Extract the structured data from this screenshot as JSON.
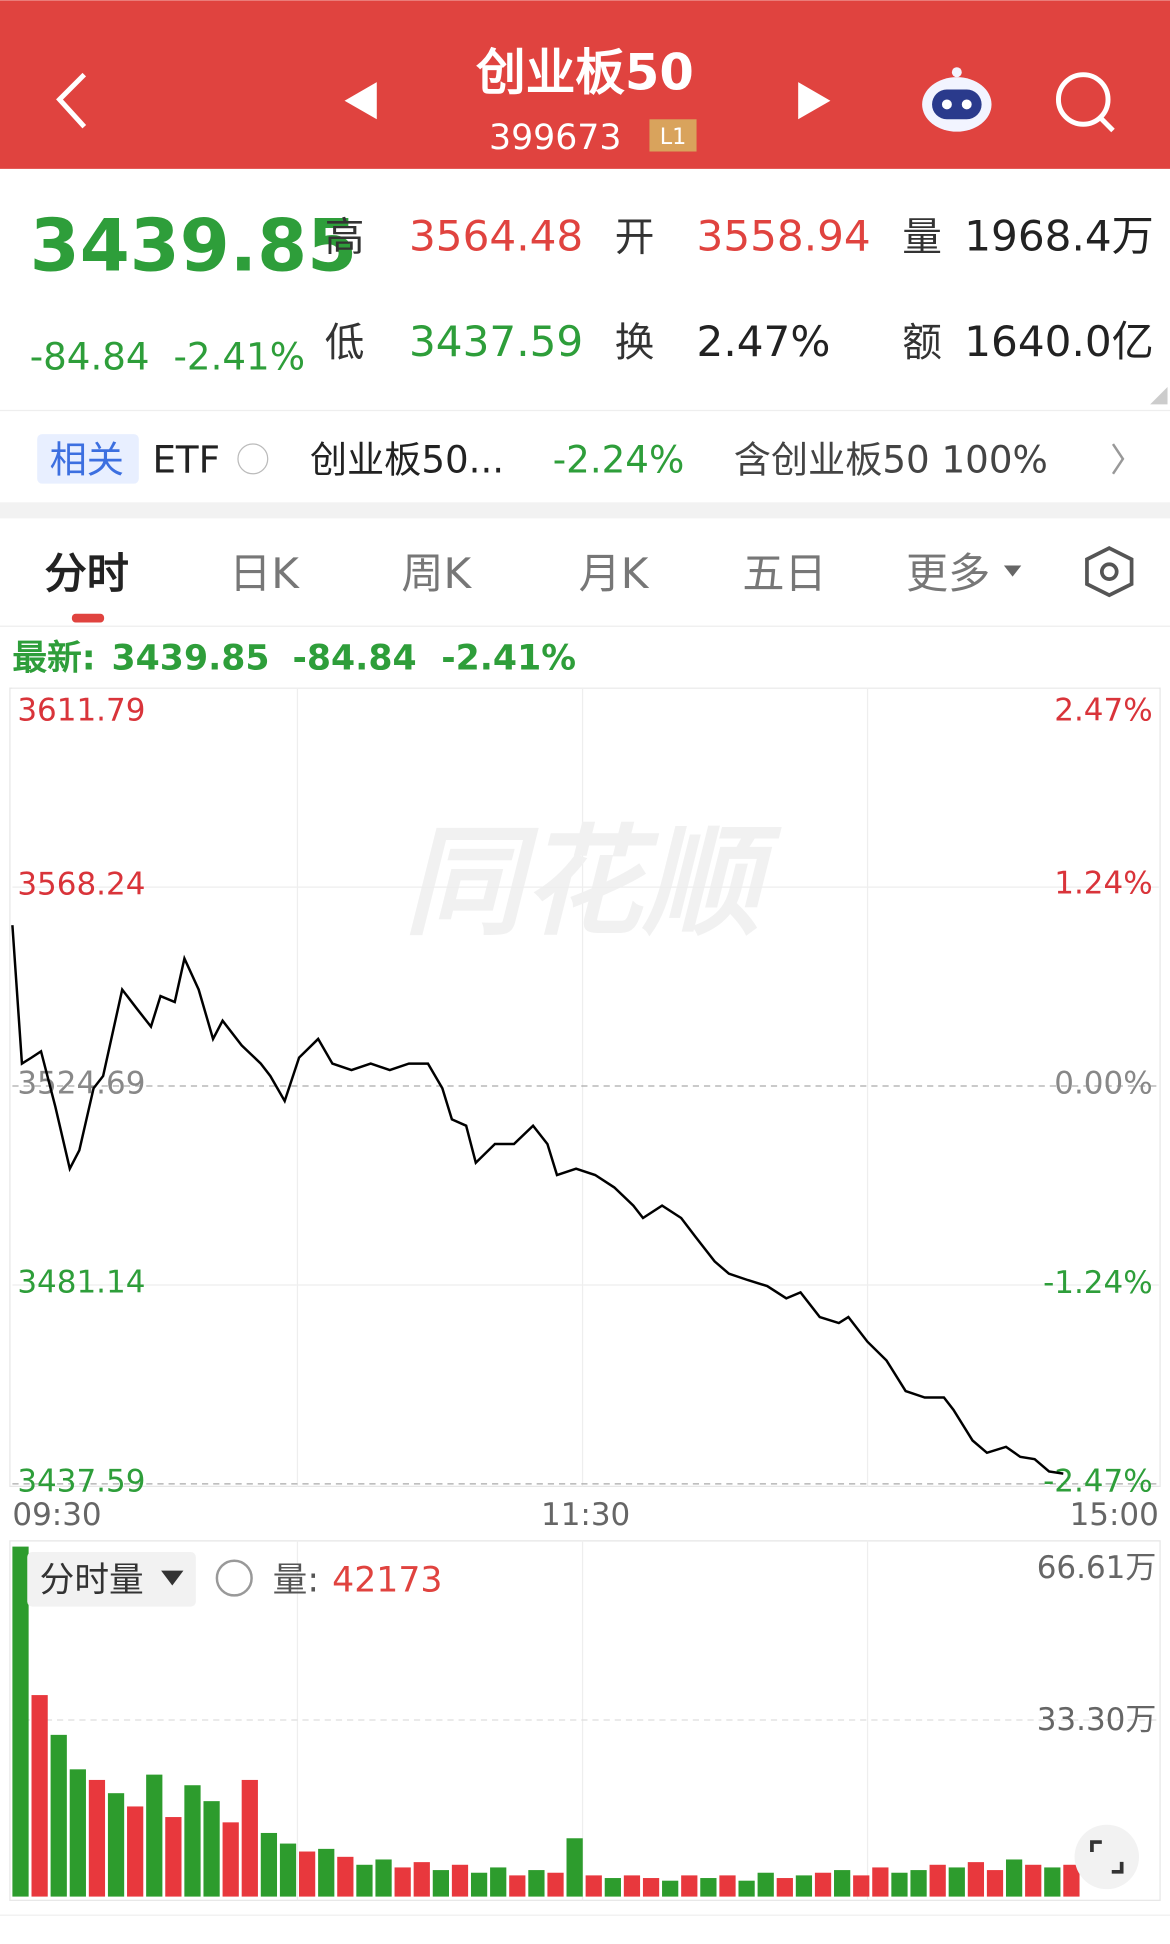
{
  "header": {
    "title": "创业板50",
    "code": "399673",
    "badge": "L1"
  },
  "quote": {
    "price": "3439.85",
    "change": "-84.84",
    "change_pct": "-2.41%",
    "stats": [
      {
        "label": "高",
        "value": "3564.48"
      },
      {
        "label": "开",
        "value": "3558.94"
      },
      {
        "label": "量",
        "value": "1968.4万"
      },
      {
        "label": "低",
        "value": "3437.59"
      },
      {
        "label": "换",
        "value": "2.47%"
      },
      {
        "label": "额",
        "value": "1640.0亿"
      }
    ]
  },
  "related": {
    "tag": "相关",
    "etf": "ETF",
    "name": "创业板50...",
    "pct": "-2.24%",
    "holding": "含创业板50 100%"
  },
  "tabs": [
    "分时",
    "日K",
    "周K",
    "月K",
    "五日",
    "更多"
  ],
  "latest": {
    "label": "最新:",
    "price": "3439.85",
    "change": "-84.84",
    "pct": "-2.41%"
  },
  "watermark": "同花顺",
  "volume_panel": {
    "label": "分时量",
    "vol_label": "量:",
    "vol_value": "42173"
  },
  "chart_data": [
    {
      "type": "line",
      "color": "#000000",
      "x": [
        0,
        2,
        4,
        6,
        9,
        12,
        14,
        17,
        19,
        23,
        26,
        29,
        31,
        34,
        36,
        39,
        42,
        44,
        48,
        52,
        54,
        57,
        60,
        64,
        67,
        71,
        75,
        79,
        83,
        87,
        90,
        92,
        95,
        97,
        101,
        105,
        109,
        112,
        114,
        118,
        122,
        126,
        130,
        132,
        136,
        140,
        143,
        147,
        150,
        154,
        158,
        162,
        165,
        169,
        173,
        175,
        179,
        183,
        187,
        191,
        195,
        197,
        201,
        204,
        208,
        211,
        214,
        217,
        220
      ],
      "values": [
        3559.9,
        3529.6,
        3530.9,
        3532.3,
        3520.1,
        3506.6,
        3510.6,
        3524.2,
        3526.9,
        3545.8,
        3541.7,
        3537.7,
        3544.4,
        3543.1,
        3552.6,
        3545.8,
        3535.0,
        3539.0,
        3533.6,
        3529.6,
        3526.9,
        3521.4,
        3530.9,
        3535.0,
        3529.6,
        3528.2,
        3529.6,
        3528.2,
        3529.6,
        3529.6,
        3524.2,
        3517.4,
        3516.0,
        3507.9,
        3512.0,
        3512.0,
        3516.0,
        3512.0,
        3505.2,
        3506.6,
        3505.2,
        3502.5,
        3498.5,
        3495.8,
        3498.5,
        3495.8,
        3491.7,
        3486.3,
        3483.6,
        3482.2,
        3480.9,
        3478.2,
        3479.5,
        3474.1,
        3472.8,
        3474.1,
        3468.7,
        3464.6,
        3457.9,
        3456.5,
        3456.5,
        3453.8,
        3447.1,
        3444.4,
        3445.7,
        3443.5,
        3443.0,
        3440.3,
        3439.85
      ],
      "xlim": [
        0,
        240
      ],
      "xticks": [
        {
          "value": 0,
          "label": "09:30"
        },
        {
          "value": 120,
          "label": "11:30"
        },
        {
          "value": 240,
          "label": "15:00"
        }
      ],
      "ylim": [
        3437.59,
        3611.79
      ],
      "yticks": [
        3611.79,
        3568.24,
        3524.69,
        3481.14,
        3437.59
      ],
      "y2lim": [
        -2.47,
        2.47
      ],
      "y2ticks": [
        {
          "value": 2.47,
          "label": "2.47%"
        },
        {
          "value": 1.24,
          "label": "1.24%"
        },
        {
          "value": 0.0,
          "label": "0.00%"
        },
        {
          "value": -1.24,
          "label": "-1.24%"
        },
        {
          "value": -2.47,
          "label": "-2.47%"
        }
      ]
    },
    {
      "type": "bar",
      "x": [
        0,
        4,
        8,
        12,
        16,
        20,
        24,
        28,
        32,
        36,
        40,
        44,
        48,
        52,
        56,
        60,
        64,
        68,
        72,
        76,
        80,
        84,
        88,
        92,
        96,
        100,
        104,
        108,
        112,
        116,
        120,
        124,
        128,
        132,
        136,
        140,
        144,
        148,
        152,
        156,
        160,
        164,
        168,
        172,
        176,
        180,
        184,
        188,
        192,
        196,
        200,
        204,
        208,
        212,
        216,
        220
      ],
      "values": [
        66.0,
        38.0,
        30.5,
        24.0,
        22.0,
        19.5,
        17.0,
        23.0,
        15.0,
        21.0,
        18.0,
        14.0,
        22.0,
        12.0,
        10.0,
        8.5,
        9.0,
        7.5,
        6.0,
        7.0,
        5.5,
        6.5,
        5.0,
        6.0,
        4.5,
        5.5,
        4.0,
        5.0,
        4.5,
        11.0,
        4.0,
        3.5,
        4.0,
        3.5,
        3.0,
        4.0,
        3.5,
        4.0,
        3.0,
        4.5,
        3.5,
        4.0,
        4.5,
        5.0,
        4.0,
        5.5,
        4.5,
        5.0,
        6.0,
        5.5,
        6.5,
        5.0,
        7.0,
        6.0,
        5.5,
        6.0
      ],
      "colors": [
        "#2d9c2d",
        "#e8383d",
        "#2d9c2d",
        "#2d9c2d",
        "#e8383d",
        "#2d9c2d",
        "#e8383d",
        "#2d9c2d",
        "#e8383d",
        "#2d9c2d",
        "#2d9c2d",
        "#e8383d",
        "#e8383d",
        "#2d9c2d",
        "#2d9c2d",
        "#e8383d",
        "#2d9c2d",
        "#e8383d",
        "#2d9c2d",
        "#2d9c2d",
        "#e8383d",
        "#e8383d",
        "#2d9c2d",
        "#e8383d",
        "#2d9c2d",
        "#2d9c2d",
        "#e8383d",
        "#2d9c2d",
        "#e8383d",
        "#2d9c2d",
        "#e8383d",
        "#2d9c2d",
        "#e8383d",
        "#e8383d",
        "#2d9c2d",
        "#e8383d",
        "#2d9c2d",
        "#e8383d",
        "#2d9c2d",
        "#2d9c2d",
        "#e8383d",
        "#2d9c2d",
        "#e8383d",
        "#2d9c2d",
        "#e8383d",
        "#e8383d",
        "#2d9c2d",
        "#2d9c2d",
        "#e8383d",
        "#2d9c2d",
        "#e8383d",
        "#e8383d",
        "#2d9c2d",
        "#e8383d",
        "#2d9c2d",
        "#e8383d"
      ],
      "xlim": [
        0,
        240
      ],
      "ylim": [
        0,
        66.61
      ],
      "yticks": [
        {
          "value": 33.3,
          "label": "33.30万"
        },
        {
          "value": 66.61,
          "label": "66.61万"
        }
      ]
    }
  ]
}
